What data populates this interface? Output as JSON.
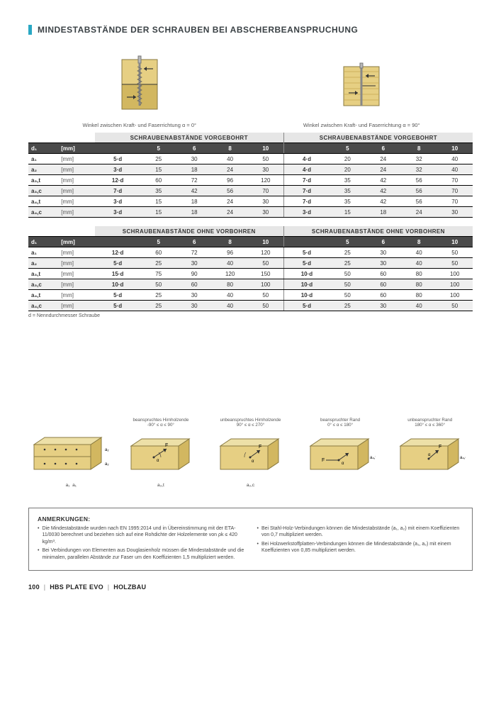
{
  "colors": {
    "accent": "#2aa8c4",
    "wood_light": "#e6cf83",
    "wood_dark": "#d2b760",
    "screw": "#b7b7b7",
    "block_stroke": "#8a7a40",
    "row_alt": "#efefef",
    "hdr_bg": "#4a4a4a"
  },
  "title": "MINDESTABSTÄNDE DER SCHRAUBEN BEI ABSCHERBEANSPRUCHUNG",
  "diagrams": {
    "left_caption": "Winkel zwischen Kraft- und Faserrichtung α = 0°",
    "right_caption": "Winkel zwischen Kraft- und Faserrichtung α = 90°"
  },
  "section_headers": {
    "vorgebohrt": "SCHRAUBENABSTÄNDE VORGEBOHRT",
    "ohne": "SCHRAUBENABSTÄNDE OHNE VORBOHREN"
  },
  "col_header": {
    "d1": "d₁",
    "unit": "[mm]"
  },
  "diam_cols": [
    "5",
    "6",
    "8",
    "10"
  ],
  "row_labels": {
    "a1": "a₁",
    "a2": "a₂",
    "a3t": "a₃,t",
    "a3c": "a₃,c",
    "a4t": "a₄,t",
    "a4c": "a₄,c"
  },
  "table_vorgebohrt": {
    "a1": {
      "L": {
        "f": "5·d",
        "v": [
          "25",
          "30",
          "40",
          "50"
        ]
      },
      "R": {
        "f": "4·d",
        "v": [
          "20",
          "24",
          "32",
          "40"
        ]
      }
    },
    "a2": {
      "L": {
        "f": "3·d",
        "v": [
          "15",
          "18",
          "24",
          "30"
        ]
      },
      "R": {
        "f": "4·d",
        "v": [
          "20",
          "24",
          "32",
          "40"
        ]
      }
    },
    "a3t": {
      "L": {
        "f": "12·d",
        "v": [
          "60",
          "72",
          "96",
          "120"
        ]
      },
      "R": {
        "f": "7·d",
        "v": [
          "35",
          "42",
          "56",
          "70"
        ]
      }
    },
    "a3c": {
      "L": {
        "f": "7·d",
        "v": [
          "35",
          "42",
          "56",
          "70"
        ]
      },
      "R": {
        "f": "7·d",
        "v": [
          "35",
          "42",
          "56",
          "70"
        ]
      }
    },
    "a4t": {
      "L": {
        "f": "3·d",
        "v": [
          "15",
          "18",
          "24",
          "30"
        ]
      },
      "R": {
        "f": "7·d",
        "v": [
          "35",
          "42",
          "56",
          "70"
        ]
      }
    },
    "a4c": {
      "L": {
        "f": "3·d",
        "v": [
          "15",
          "18",
          "24",
          "30"
        ]
      },
      "R": {
        "f": "3·d",
        "v": [
          "15",
          "18",
          "24",
          "30"
        ]
      }
    }
  },
  "table_ohne": {
    "a1": {
      "L": {
        "f": "12·d",
        "v": [
          "60",
          "72",
          "96",
          "120"
        ]
      },
      "R": {
        "f": "5·d",
        "v": [
          "25",
          "30",
          "40",
          "50"
        ]
      }
    },
    "a2": {
      "L": {
        "f": "5·d",
        "v": [
          "25",
          "30",
          "40",
          "50"
        ]
      },
      "R": {
        "f": "5·d",
        "v": [
          "25",
          "30",
          "40",
          "50"
        ]
      }
    },
    "a3t": {
      "L": {
        "f": "15·d",
        "v": [
          "75",
          "90",
          "120",
          "150"
        ]
      },
      "R": {
        "f": "10·d",
        "v": [
          "50",
          "60",
          "80",
          "100"
        ]
      }
    },
    "a3c": {
      "L": {
        "f": "10·d",
        "v": [
          "50",
          "60",
          "80",
          "100"
        ]
      },
      "R": {
        "f": "10·d",
        "v": [
          "50",
          "60",
          "80",
          "100"
        ]
      }
    },
    "a4t": {
      "L": {
        "f": "5·d",
        "v": [
          "25",
          "30",
          "40",
          "50"
        ]
      },
      "R": {
        "f": "10·d",
        "v": [
          "50",
          "60",
          "80",
          "100"
        ]
      }
    },
    "a4c": {
      "L": {
        "f": "5·d",
        "v": [
          "25",
          "30",
          "40",
          "50"
        ]
      },
      "R": {
        "f": "5·d",
        "v": [
          "25",
          "30",
          "40",
          "50"
        ]
      }
    }
  },
  "footnote": "d = Nenndurchmesser Schraube",
  "lower": {
    "d1": {
      "top": "",
      "bot_l": "a₁",
      "bot_r": "a₁",
      "side_t": "a₂",
      "side_b": "a₂"
    },
    "d2": {
      "top": "beanspruchtes Hirnholzende\n-90° ≤ α ≤ 90°",
      "bot": "a₃,t"
    },
    "d3": {
      "top": "unbeanspruchtes Hirnholzende\n90° ≤ α ≤ 270°",
      "bot": "a₃,c"
    },
    "d4": {
      "top": "beanspruchter Rand\n0° ≤ α ≤ 180°",
      "bot": "a₄,t"
    },
    "d5": {
      "top": "unbeanspruchter Rand\n180° ≤ α ≤ 360°",
      "bot": "a₄,c"
    }
  },
  "notes": {
    "title": "ANMERKUNGEN:",
    "left": [
      "Die Mindestabstände wurden nach EN 1995:2014 und in Übereinstimmung mit der ETA-11/0030 berechnet und beziehen sich auf eine Rohdichte der Holzelemente von ρk ≤ 420 kg/m³.",
      "Bei Verbindungen von Elementen aus Douglasienholz müssen die Mindestabstände und die minimalen, parallelen Abstände zur Faser um den Koeffizienten 1,5 multipliziert werden."
    ],
    "right": [
      "Bei Stahl-Holz-Verbindungen können die Mindestabstände (a₁, a₂) mit einem Koeffizienten von 0,7 multipliziert werden.",
      "Bei Holzwerkstoffplatten-Verbindungen können die Mindestabstände (a₁, a₂) mit einem Koeffizienten von 0,85 multipliziert werden."
    ]
  },
  "footer": {
    "page": "100",
    "mid": "HBS PLATE EVO",
    "right": "HOLZBAU"
  }
}
